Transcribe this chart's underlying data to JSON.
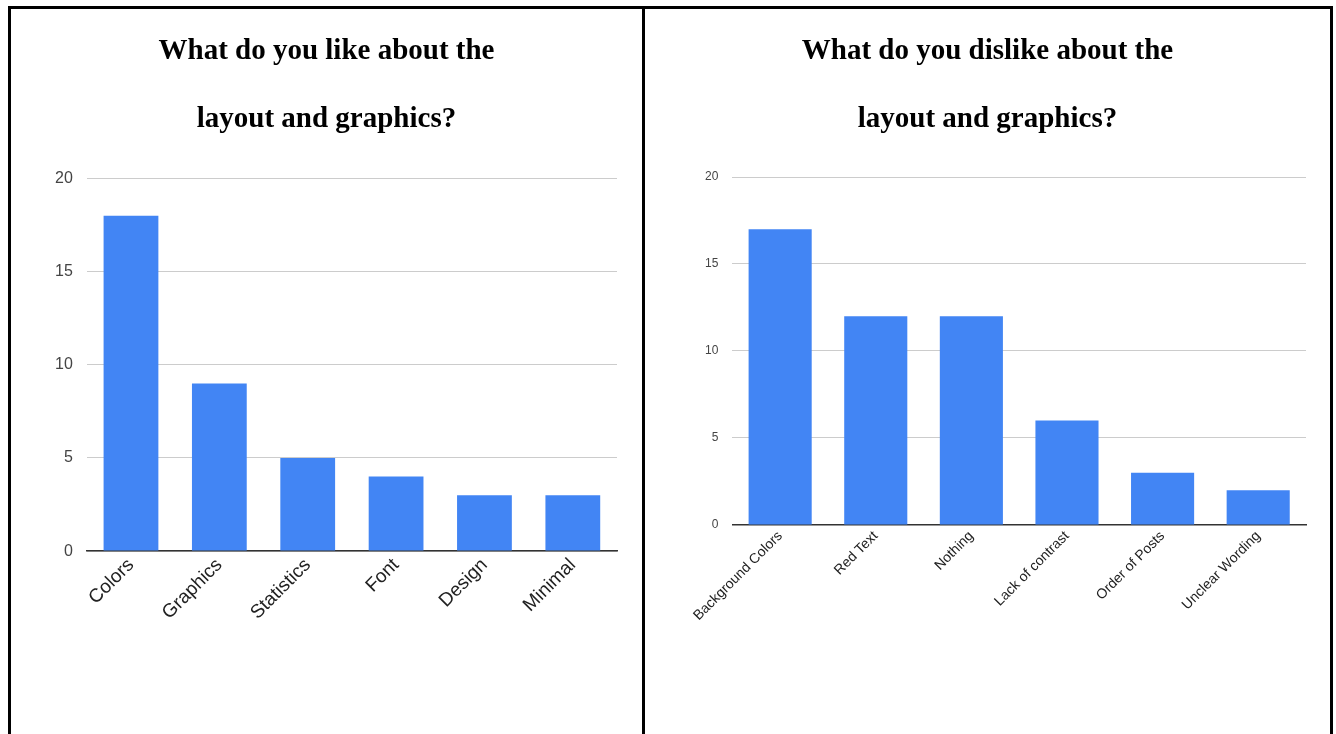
{
  "chart_data": [
    {
      "type": "bar",
      "title": "What do you like about the layout and graphics?",
      "categories": [
        "Colors",
        "Graphics",
        "Statistics",
        "Font",
        "Design",
        "Minimal"
      ],
      "values": [
        18,
        9,
        5,
        4,
        3,
        3
      ],
      "color": "#4285f4",
      "ylim": [
        0,
        20
      ],
      "yticks": [
        0,
        5,
        10,
        15,
        20
      ],
      "grid": "y"
    },
    {
      "type": "bar",
      "title": "What do you dislike about the layout and graphics?",
      "categories": [
        "Background Colors",
        "Red Text",
        "Nothing",
        "Lack of contrast",
        "Order of Posts",
        "Unclear Wording"
      ],
      "values": [
        17,
        12,
        12,
        6,
        3,
        2
      ],
      "color": "#4285f4",
      "ylim": [
        0,
        20
      ],
      "yticks": [
        0,
        5,
        10,
        15,
        20
      ],
      "grid": "y"
    }
  ]
}
